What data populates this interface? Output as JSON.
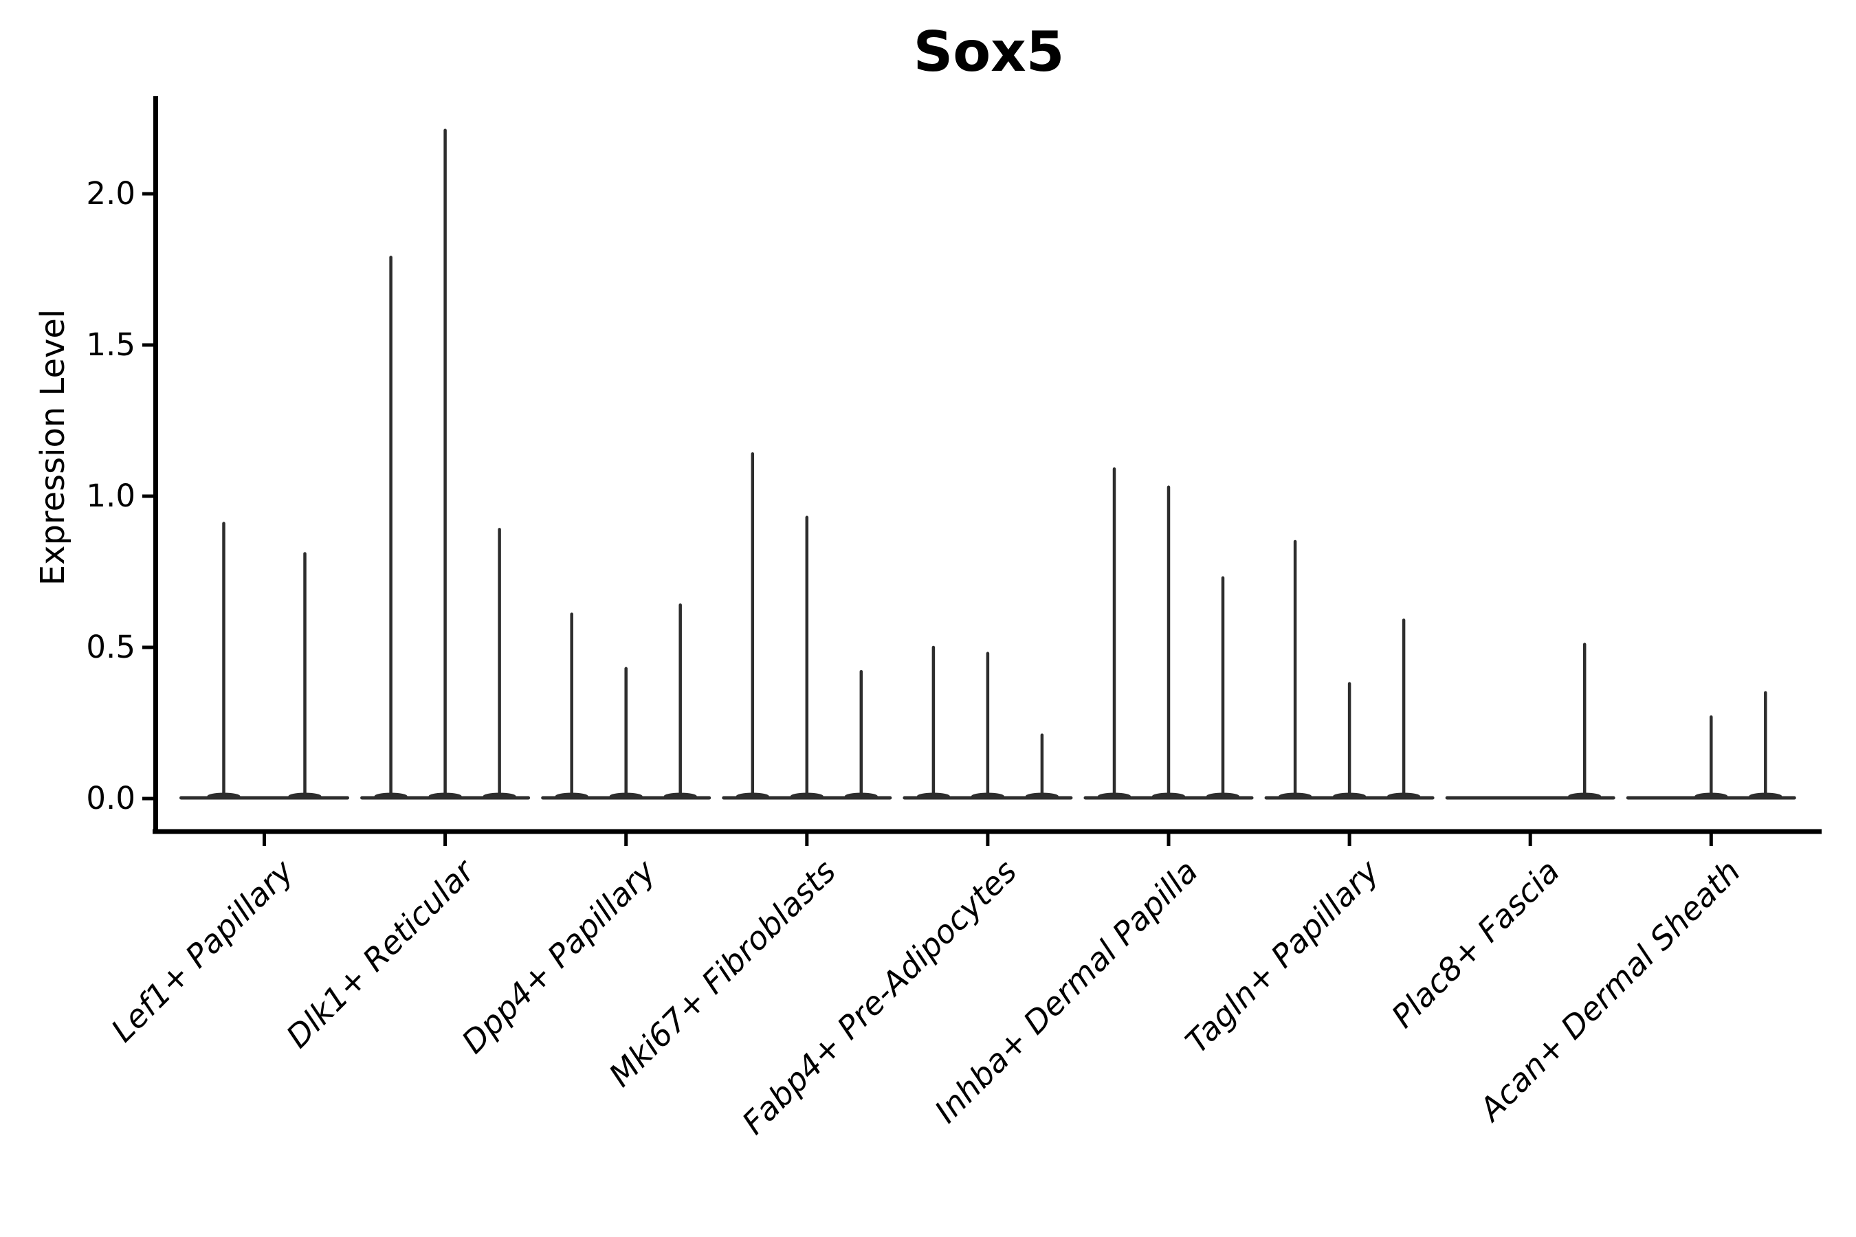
{
  "title": "Sox5",
  "y_axis": {
    "label": "Expression Level",
    "tick_labels": [
      "0.0",
      "0.5",
      "1.0",
      "1.5",
      "2.0"
    ]
  },
  "colors": {
    "axis": "#000000",
    "violin_line": "#2d2d2d",
    "text": "#000000",
    "background": "#ffffff"
  },
  "chart_data": {
    "type": "violin",
    "title": "Sox5",
    "xlabel": "",
    "ylabel": "Expression Level",
    "ylim": [
      0,
      2.32
    ],
    "yticks": [
      0.0,
      0.5,
      1.0,
      1.5,
      2.0
    ],
    "ytick_labels": [
      "0.0",
      "0.5",
      "1.0",
      "1.5",
      "2.0"
    ],
    "grid": false,
    "legend": "none",
    "description": "Violin plot of Sox5 expression; violins are degenerate near-zero-width spikes rising from a flat baseline at 0. Each category holds 2-3 split violins; peak = top of spike in expression units.",
    "categories": [
      "Lef1+ Papillary",
      "Dlk1+ Reticular",
      "Dpp4+ Papillary",
      "Mki67+ Fibroblasts",
      "Fabp4+ Pre-Adipocytes",
      "Inhba+ Dermal Papilla",
      "Tagln+ Papillary",
      "Plac8+ Fascia",
      "Acan+ Dermal Sheath"
    ],
    "groups": [
      {
        "category": "Lef1+ Papillary",
        "slots": 2,
        "violins": [
          {
            "slot": 0,
            "peak": 0.91
          },
          {
            "slot": 1,
            "peak": 0.81
          }
        ]
      },
      {
        "category": "Dlk1+ Reticular",
        "slots": 3,
        "violins": [
          {
            "slot": 0,
            "peak": 1.79
          },
          {
            "slot": 1,
            "peak": 2.21
          },
          {
            "slot": 2,
            "peak": 0.89
          }
        ]
      },
      {
        "category": "Dpp4+ Papillary",
        "slots": 3,
        "violins": [
          {
            "slot": 0,
            "peak": 0.61
          },
          {
            "slot": 1,
            "peak": 0.43
          },
          {
            "slot": 2,
            "peak": 0.64
          }
        ]
      },
      {
        "category": "Mki67+ Fibroblasts",
        "slots": 3,
        "violins": [
          {
            "slot": 0,
            "peak": 1.14
          },
          {
            "slot": 1,
            "peak": 0.93
          },
          {
            "slot": 2,
            "peak": 0.42
          }
        ]
      },
      {
        "category": "Fabp4+ Pre-Adipocytes",
        "slots": 3,
        "violins": [
          {
            "slot": 0,
            "peak": 0.5
          },
          {
            "slot": 1,
            "peak": 0.48
          },
          {
            "slot": 2,
            "peak": 0.21
          }
        ]
      },
      {
        "category": "Inhba+ Dermal Papilla",
        "slots": 3,
        "violins": [
          {
            "slot": 0,
            "peak": 1.09
          },
          {
            "slot": 1,
            "peak": 1.03
          },
          {
            "slot": 2,
            "peak": 0.73
          }
        ]
      },
      {
        "category": "Tagln+ Papillary",
        "slots": 3,
        "violins": [
          {
            "slot": 0,
            "peak": 0.85
          },
          {
            "slot": 1,
            "peak": 0.38
          },
          {
            "slot": 2,
            "peak": 0.59
          }
        ]
      },
      {
        "category": "Plac8+ Fascia",
        "slots": 3,
        "violins": [
          {
            "slot": 2,
            "peak": 0.51
          }
        ]
      },
      {
        "category": "Acan+ Dermal Sheath",
        "slots": 3,
        "violins": [
          {
            "slot": 1,
            "peak": 0.27
          },
          {
            "slot": 2,
            "peak": 0.35
          }
        ]
      }
    ]
  }
}
